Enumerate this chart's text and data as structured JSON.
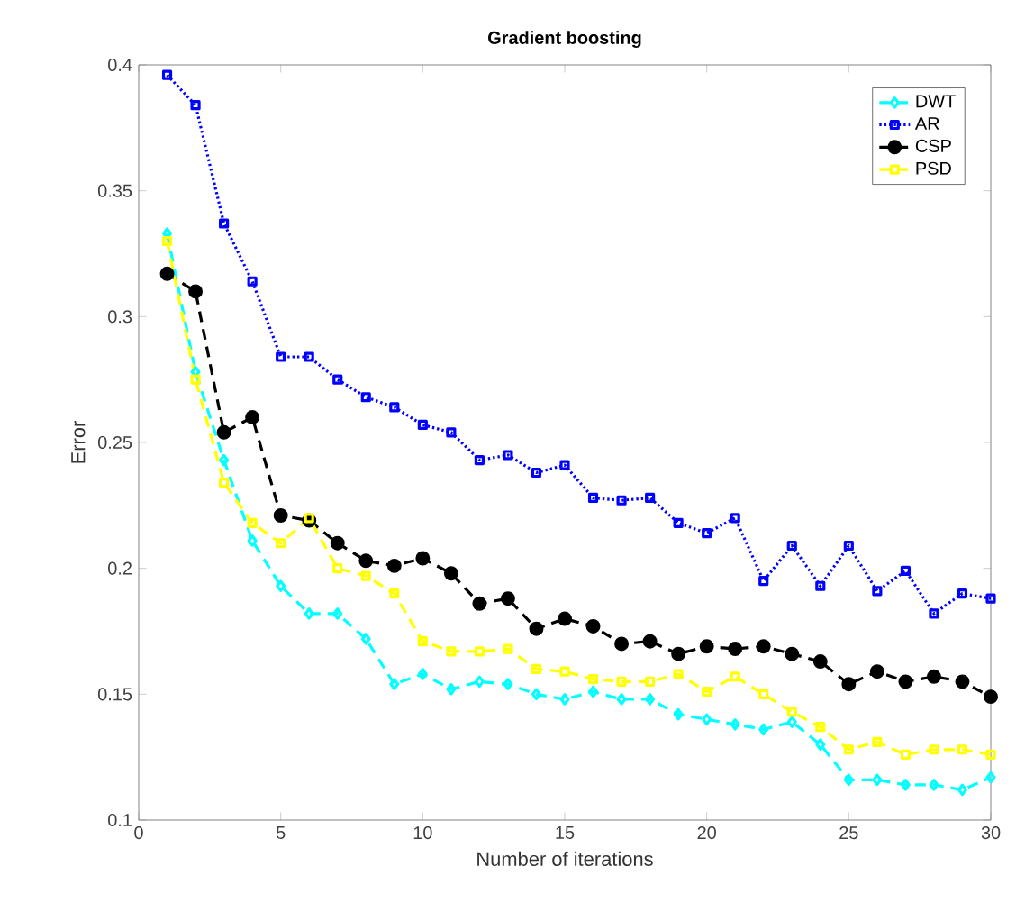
{
  "chart_data": {
    "type": "line",
    "title": "Gradient boosting",
    "xlabel": "Number of iterations",
    "ylabel": "Error",
    "x": [
      1,
      2,
      3,
      4,
      5,
      6,
      7,
      8,
      9,
      10,
      11,
      12,
      13,
      14,
      15,
      16,
      17,
      18,
      19,
      20,
      21,
      22,
      23,
      24,
      25,
      26,
      27,
      28,
      29,
      30
    ],
    "xlim": [
      0,
      30
    ],
    "ylim": [
      0.1,
      0.4
    ],
    "xticks": [
      0,
      5,
      10,
      15,
      20,
      25,
      30
    ],
    "yticks": [
      0.1,
      0.15,
      0.2,
      0.25,
      0.3,
      0.35,
      0.4
    ],
    "legend": "top right",
    "series": [
      {
        "name": "DWT",
        "color": "#00ffff",
        "marker": "diamond",
        "line_style": "dashed",
        "values": [
          0.333,
          0.278,
          0.243,
          0.211,
          0.193,
          0.182,
          0.182,
          0.172,
          0.154,
          0.158,
          0.152,
          0.155,
          0.154,
          0.15,
          0.148,
          0.151,
          0.148,
          0.148,
          0.142,
          0.14,
          0.138,
          0.136,
          0.139,
          0.13,
          0.116,
          0.116,
          0.114,
          0.114,
          0.112,
          0.117
        ]
      },
      {
        "name": "AR",
        "color": "#0000ff",
        "marker": "square",
        "line_style": "dotted",
        "values": [
          0.396,
          0.384,
          0.337,
          0.314,
          0.284,
          0.284,
          0.275,
          0.268,
          0.264,
          0.257,
          0.254,
          0.243,
          0.245,
          0.238,
          0.241,
          0.228,
          0.227,
          0.228,
          0.218,
          0.214,
          0.22,
          0.195,
          0.209,
          0.193,
          0.209,
          0.191,
          0.199,
          0.182,
          0.19,
          0.188
        ]
      },
      {
        "name": "CSP",
        "color": "#000000",
        "marker": "circle",
        "line_style": "dashed",
        "values": [
          0.317,
          0.31,
          0.254,
          0.26,
          0.221,
          0.219,
          0.21,
          0.203,
          0.201,
          0.204,
          0.198,
          0.186,
          0.188,
          0.176,
          0.18,
          0.177,
          0.17,
          0.171,
          0.166,
          0.169,
          0.168,
          0.169,
          0.166,
          0.163,
          0.154,
          0.159,
          0.155,
          0.157,
          0.155,
          0.149
        ]
      },
      {
        "name": "PSD",
        "color": "#ffff00",
        "marker": "square",
        "line_style": "dashed",
        "values": [
          0.33,
          0.275,
          0.234,
          0.218,
          0.21,
          0.22,
          0.2,
          0.197,
          0.19,
          0.171,
          0.167,
          0.167,
          0.168,
          0.16,
          0.159,
          0.156,
          0.155,
          0.155,
          0.158,
          0.151,
          0.157,
          0.15,
          0.143,
          0.137,
          0.128,
          0.131,
          0.126,
          0.128,
          0.128,
          0.126
        ]
      }
    ]
  }
}
